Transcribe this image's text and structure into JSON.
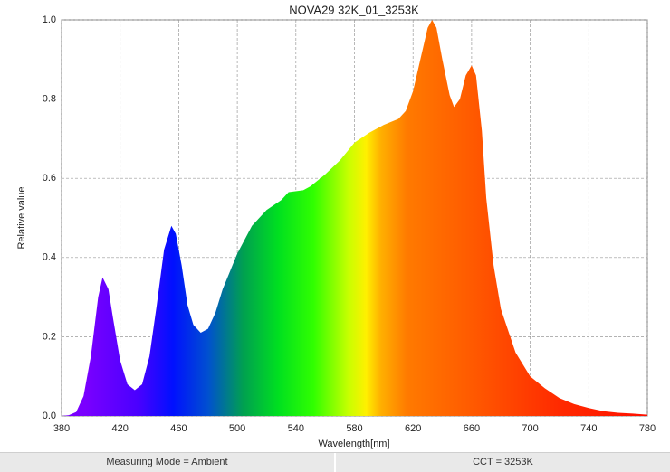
{
  "chart_data": {
    "type": "area",
    "title": "NOVA29 32K_01_3253K",
    "x_label": "Wavelength[nm]",
    "y_label": "Relative value",
    "x": [
      380,
      385,
      390,
      395,
      400,
      405,
      408,
      412,
      415,
      420,
      425,
      430,
      435,
      440,
      445,
      450,
      455,
      458,
      462,
      466,
      470,
      475,
      480,
      485,
      490,
      500,
      510,
      520,
      530,
      535,
      545,
      550,
      560,
      570,
      580,
      590,
      600,
      610,
      615,
      620,
      625,
      630,
      633,
      636,
      640,
      645,
      648,
      652,
      656,
      660,
      663,
      667,
      670,
      675,
      680,
      690,
      700,
      710,
      720,
      730,
      740,
      750,
      760,
      770,
      780
    ],
    "values": [
      0,
      0.002,
      0.01,
      0.05,
      0.15,
      0.3,
      0.35,
      0.32,
      0.25,
      0.14,
      0.08,
      0.065,
      0.08,
      0.15,
      0.28,
      0.42,
      0.48,
      0.46,
      0.38,
      0.28,
      0.23,
      0.21,
      0.22,
      0.26,
      0.32,
      0.41,
      0.48,
      0.52,
      0.545,
      0.565,
      0.57,
      0.58,
      0.61,
      0.645,
      0.69,
      0.715,
      0.735,
      0.75,
      0.77,
      0.82,
      0.9,
      0.98,
      1.0,
      0.98,
      0.9,
      0.81,
      0.78,
      0.8,
      0.86,
      0.885,
      0.86,
      0.72,
      0.55,
      0.38,
      0.27,
      0.16,
      0.1,
      0.07,
      0.045,
      0.03,
      0.02,
      0.012,
      0.008,
      0.006,
      0.003
    ],
    "xlim": [
      380,
      780
    ],
    "xticks": [
      380,
      420,
      460,
      500,
      540,
      580,
      620,
      660,
      700,
      740,
      780
    ],
    "ylim": [
      0,
      1
    ],
    "yticks": [
      {
        "value": 0,
        "label": "0.0"
      },
      0.2,
      0.4,
      0.6,
      0.8,
      {
        "value": 1,
        "label": "1.0"
      }
    ],
    "grid": true
  },
  "footer": {
    "left": "Measuring Mode = Ambient",
    "right": "CCT = 3253K"
  }
}
